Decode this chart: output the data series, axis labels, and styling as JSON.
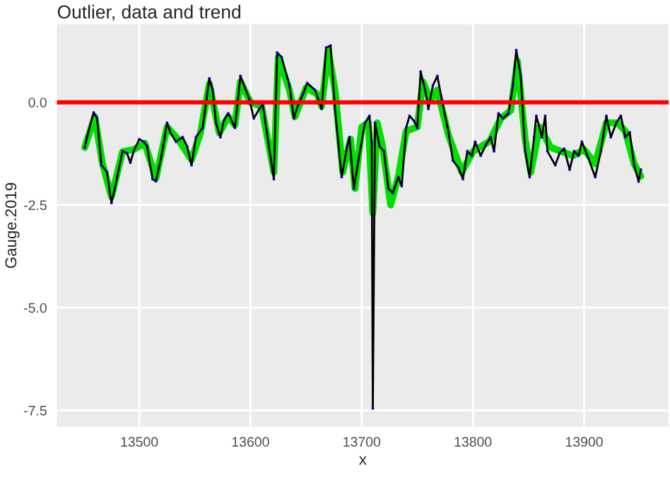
{
  "chart_data": {
    "type": "line",
    "title": "Outlier, data and trend",
    "xlabel": "x",
    "ylabel": "Gauge.2019",
    "xlim": [
      13426,
      13976
    ],
    "xticks": [
      13500,
      13600,
      13700,
      13800,
      13900
    ],
    "ylim": [
      -7.9,
      1.9
    ],
    "yticks": [
      {
        "value": 0,
        "label": "0.0"
      },
      {
        "value": -2.5,
        "label": "-2.5"
      },
      {
        "value": -5,
        "label": "-5.0"
      },
      {
        "value": -7.5,
        "label": "-7.5"
      }
    ],
    "grid": true,
    "legend": false,
    "ref_lines": [
      {
        "axis": "y",
        "value": 0,
        "label": null,
        "color": "#ff0000",
        "line_style": "solid"
      }
    ],
    "series": [
      {
        "color": "#00e000",
        "marker": "none",
        "x": [
          13451,
          13460,
          13467,
          13475,
          13485,
          13495,
          13505,
          13515,
          13525,
          13535,
          13547,
          13555,
          13563,
          13572,
          13580,
          13586,
          13591,
          13600,
          13610,
          13621,
          13625,
          13635,
          13640,
          13650,
          13660,
          13664,
          13670,
          13676,
          13683,
          13690,
          13694,
          13700,
          13706,
          13710,
          13714,
          13719,
          13726,
          13733,
          13740,
          13750,
          13755,
          13762,
          13768,
          13778,
          13790,
          13800,
          13815,
          13825,
          13834,
          13840,
          13847,
          13852,
          13860,
          13870,
          13880,
          13890,
          13900,
          13910,
          13920,
          13930,
          13937,
          13945,
          13951
        ],
        "values": [
          -1.1,
          -0.35,
          -1.5,
          -2.3,
          -1.2,
          -1.15,
          -1.0,
          -1.85,
          -0.6,
          -0.9,
          -1.4,
          -0.75,
          0.45,
          -0.75,
          -0.35,
          -0.55,
          0.5,
          0.0,
          -0.1,
          -1.7,
          1.1,
          0.3,
          -0.35,
          0.35,
          0.2,
          -0.1,
          1.25,
          0.3,
          -1.7,
          -0.9,
          -2.1,
          -0.6,
          -0.5,
          -2.7,
          -0.5,
          -1.1,
          -2.5,
          -1.8,
          -0.7,
          -0.6,
          0.5,
          0.05,
          0.3,
          -0.8,
          -1.7,
          -1.2,
          -0.95,
          -0.4,
          -0.2,
          1.0,
          -0.9,
          -1.7,
          -0.6,
          -1.1,
          -1.2,
          -1.3,
          -1.15,
          -1.5,
          -0.5,
          -0.5,
          -0.7,
          -1.5,
          -1.8
        ]
      },
      {
        "color": "#000000",
        "marker": "none",
        "x": [
          13451,
          13453,
          13459,
          13462,
          13466,
          13471,
          13475,
          13478,
          13485,
          13489,
          13492,
          13495,
          13500,
          13504,
          13507,
          13512,
          13515,
          13520,
          13525,
          13528,
          13533,
          13539,
          13543,
          13547,
          13551,
          13557,
          13561,
          13563,
          13566,
          13569,
          13573,
          13576,
          13580,
          13586,
          13591,
          13595,
          13599,
          13603,
          13608,
          13611,
          13616,
          13621,
          13624,
          13628,
          13635,
          13639,
          13643,
          13647,
          13651,
          13658,
          13664,
          13668,
          13672,
          13676,
          13682,
          13687,
          13689,
          13693,
          13697,
          13703,
          13707,
          13709,
          13710,
          13712,
          13716,
          13720,
          13724,
          13728,
          13733,
          13736,
          13740,
          13743,
          13747,
          13750,
          13753,
          13757,
          13760,
          13764,
          13768,
          13772,
          13778,
          13782,
          13787,
          13791,
          13795,
          13799,
          13802,
          13807,
          13812,
          13816,
          13819,
          13823,
          13827,
          13832,
          13836,
          13839,
          13843,
          13847,
          13851,
          13855,
          13857,
          13862,
          13865,
          13867,
          13874,
          13878,
          13882,
          13887,
          13891,
          13895,
          13898,
          13903,
          13910,
          13915,
          13920,
          13924,
          13929,
          13933,
          13937,
          13941,
          13945,
          13949,
          13951
        ],
        "values": [
          -1.1,
          -0.85,
          -0.25,
          -0.38,
          -1.53,
          -1.7,
          -2.45,
          -2.1,
          -1.19,
          -1.24,
          -1.47,
          -1.19,
          -0.9,
          -0.96,
          -1.07,
          -1.87,
          -1.92,
          -1.3,
          -0.5,
          -0.73,
          -0.96,
          -0.85,
          -1.07,
          -1.53,
          -0.85,
          -0.62,
          0.18,
          0.58,
          0.3,
          -0.5,
          -0.85,
          -0.45,
          -0.27,
          -0.62,
          0.64,
          0.35,
          0.07,
          -0.39,
          -0.16,
          -0.05,
          -0.96,
          -1.87,
          1.21,
          1.1,
          0.41,
          -0.39,
          -0.05,
          0.18,
          0.47,
          0.3,
          -0.16,
          1.33,
          1.38,
          -0.16,
          -1.82,
          -1.07,
          -0.85,
          -2.1,
          -1.42,
          -0.5,
          -0.33,
          -0.96,
          -7.45,
          -0.5,
          -1.07,
          -1.19,
          -2.1,
          -2.21,
          -1.82,
          -2.04,
          -0.62,
          -0.33,
          -0.45,
          -0.62,
          0.75,
          0.3,
          -0.16,
          0.41,
          0.64,
          0.07,
          -0.73,
          -1.42,
          -1.59,
          -1.87,
          -1.19,
          -1.3,
          -0.96,
          -1.3,
          -1.02,
          -0.85,
          -1.19,
          -0.27,
          -0.39,
          -0.27,
          0.41,
          1.27,
          0.64,
          -1.19,
          -1.82,
          -0.85,
          -0.33,
          -0.85,
          -0.33,
          -1.19,
          -1.53,
          -1.24,
          -1.13,
          -1.64,
          -1.19,
          -1.3,
          -0.96,
          -1.3,
          -1.82,
          -1.19,
          -0.33,
          -0.85,
          -0.5,
          -0.33,
          -0.85,
          -0.73,
          -1.53,
          -1.93,
          -1.64
        ]
      },
      {
        "type": "scatter",
        "color": "#0000cc",
        "marker": "circle",
        "x": [
          13451,
          13453,
          13459,
          13462,
          13466,
          13471,
          13475,
          13478,
          13485,
          13489,
          13492,
          13495,
          13500,
          13504,
          13507,
          13512,
          13515,
          13520,
          13525,
          13528,
          13533,
          13539,
          13543,
          13547,
          13551,
          13557,
          13561,
          13563,
          13566,
          13569,
          13573,
          13576,
          13580,
          13586,
          13591,
          13595,
          13599,
          13603,
          13608,
          13611,
          13616,
          13621,
          13624,
          13628,
          13635,
          13639,
          13643,
          13647,
          13651,
          13658,
          13664,
          13668,
          13672,
          13676,
          13682,
          13687,
          13689,
          13693,
          13697,
          13703,
          13707,
          13709,
          13710,
          13712,
          13716,
          13720,
          13724,
          13728,
          13733,
          13736,
          13740,
          13743,
          13747,
          13750,
          13753,
          13757,
          13760,
          13764,
          13768,
          13772,
          13778,
          13782,
          13787,
          13791,
          13795,
          13799,
          13802,
          13807,
          13812,
          13816,
          13819,
          13823,
          13827,
          13832,
          13836,
          13839,
          13843,
          13847,
          13851,
          13855,
          13857,
          13862,
          13865,
          13867,
          13874,
          13878,
          13882,
          13887,
          13891,
          13895,
          13898,
          13903,
          13910,
          13915,
          13920,
          13924,
          13929,
          13933,
          13937,
          13941,
          13945,
          13949,
          13951
        ],
        "values": [
          -1.1,
          -0.85,
          -0.25,
          -0.38,
          -1.53,
          -1.7,
          -2.45,
          -2.1,
          -1.19,
          -1.24,
          -1.47,
          -1.19,
          -0.9,
          -0.96,
          -1.07,
          -1.87,
          -1.92,
          -1.3,
          -0.5,
          -0.73,
          -0.96,
          -0.85,
          -1.07,
          -1.53,
          -0.85,
          -0.62,
          0.18,
          0.58,
          0.3,
          -0.5,
          -0.85,
          -0.45,
          -0.27,
          -0.62,
          0.64,
          0.35,
          0.07,
          -0.39,
          -0.16,
          -0.05,
          -0.96,
          -1.87,
          1.21,
          1.1,
          0.41,
          -0.39,
          -0.05,
          0.18,
          0.47,
          0.3,
          -0.16,
          1.33,
          1.38,
          -0.16,
          -1.82,
          -1.07,
          -0.85,
          -2.1,
          -1.42,
          -0.5,
          -0.33,
          -0.96,
          -7.45,
          -0.5,
          -1.07,
          -1.19,
          -2.1,
          -2.21,
          -1.82,
          -2.04,
          -0.62,
          -0.33,
          -0.45,
          -0.62,
          0.75,
          0.3,
          -0.16,
          0.41,
          0.64,
          0.07,
          -0.73,
          -1.42,
          -1.59,
          -1.87,
          -1.19,
          -1.3,
          -0.96,
          -1.3,
          -1.02,
          -0.85,
          -1.19,
          -0.27,
          -0.39,
          -0.27,
          0.41,
          1.27,
          0.64,
          -1.19,
          -1.82,
          -0.85,
          -0.33,
          -0.85,
          -0.33,
          -1.19,
          -1.53,
          -1.24,
          -1.13,
          -1.64,
          -1.19,
          -1.3,
          -0.96,
          -1.3,
          -1.82,
          -1.19,
          -0.33,
          -0.85,
          -0.5,
          -0.33,
          -0.85,
          -0.73,
          -1.53,
          -1.93,
          -1.64
        ]
      }
    ]
  }
}
